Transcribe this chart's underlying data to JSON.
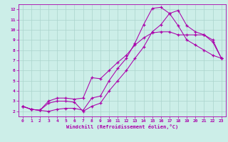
{
  "bg_color": "#cceee8",
  "grid_color": "#aad4cc",
  "line_color": "#aa00aa",
  "xlim": [
    -0.5,
    23.5
  ],
  "ylim": [
    1.5,
    12.5
  ],
  "xticks": [
    0,
    1,
    2,
    3,
    4,
    5,
    6,
    7,
    8,
    9,
    10,
    11,
    12,
    13,
    14,
    15,
    16,
    17,
    18,
    19,
    20,
    21,
    22,
    23
  ],
  "yticks": [
    2,
    3,
    4,
    5,
    6,
    7,
    8,
    9,
    10,
    11,
    12
  ],
  "xlabel": "Windchill (Refroidissement éolien,°C)",
  "line1_x": [
    0,
    1,
    2,
    3,
    4,
    5,
    6,
    7,
    8,
    9,
    10,
    11,
    12,
    13,
    14,
    15,
    16,
    17,
    18,
    19,
    20,
    21,
    22,
    23
  ],
  "line1_y": [
    2.5,
    2.2,
    2.1,
    2.0,
    2.2,
    2.3,
    2.3,
    2.1,
    3.3,
    3.5,
    5.0,
    6.2,
    7.2,
    8.7,
    10.5,
    12.1,
    12.2,
    11.6,
    11.9,
    10.4,
    9.8,
    9.5,
    8.8,
    7.2
  ],
  "line2_x": [
    0,
    1,
    2,
    3,
    4,
    5,
    6,
    7,
    8,
    9,
    10,
    11,
    12,
    13,
    14,
    15,
    16,
    17,
    18,
    19,
    20,
    21,
    22,
    23
  ],
  "line2_y": [
    2.5,
    2.2,
    2.1,
    3.0,
    3.3,
    3.3,
    3.2,
    3.3,
    5.3,
    5.2,
    6.0,
    6.8,
    7.5,
    8.5,
    9.2,
    9.7,
    9.8,
    9.8,
    9.5,
    9.5,
    9.5,
    9.5,
    9.0,
    7.2
  ],
  "line3_x": [
    0,
    1,
    2,
    3,
    4,
    5,
    6,
    7,
    8,
    9,
    10,
    11,
    12,
    13,
    14,
    15,
    16,
    17,
    18,
    19,
    20,
    21,
    22,
    23
  ],
  "line3_y": [
    2.5,
    2.2,
    2.1,
    2.8,
    3.0,
    3.0,
    2.9,
    2.0,
    2.5,
    2.8,
    4.0,
    5.0,
    6.0,
    7.2,
    8.3,
    9.8,
    10.5,
    11.6,
    10.4,
    9.0,
    8.5,
    8.0,
    7.5,
    7.2
  ]
}
